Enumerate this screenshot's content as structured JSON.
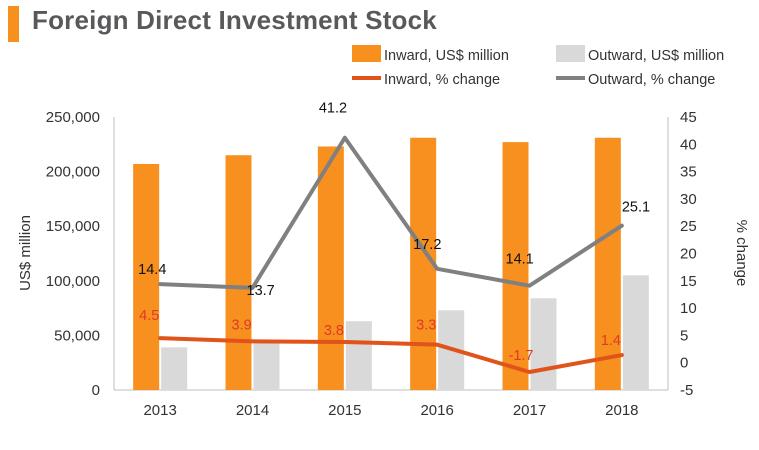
{
  "header": {
    "title": "Foreign Direct Investment Stock"
  },
  "colors": {
    "inward": "#f7901e",
    "outward": "#d9d9d9",
    "inward_line": "#e0531b",
    "outward_line": "#808080",
    "text": "#333333",
    "red_label": "#e03a27",
    "accent": "#f7901e"
  },
  "chart_data": {
    "type": "bar",
    "title": "Foreign Direct Investment Stock",
    "categories": [
      "2013",
      "2014",
      "2015",
      "2016",
      "2017",
      "2018"
    ],
    "series": [
      {
        "name": "Inward, US$ million",
        "kind": "bar",
        "axis": "left",
        "values": [
          207000,
          215000,
          223000,
          231000,
          227000,
          231000
        ]
      },
      {
        "name": "Outward, US$ million",
        "kind": "bar",
        "axis": "left",
        "values": [
          39000,
          44000,
          63000,
          73000,
          84000,
          105000
        ]
      },
      {
        "name": "Inward, % change",
        "kind": "line",
        "axis": "right",
        "values": [
          4.5,
          3.9,
          3.8,
          3.3,
          -1.7,
          1.4
        ],
        "labels": [
          "4.5",
          "3.9",
          "3.8",
          "3.3",
          "-1.7",
          "1.4"
        ]
      },
      {
        "name": "Outward, % change",
        "kind": "line",
        "axis": "right",
        "values": [
          14.4,
          13.7,
          41.2,
          17.2,
          14.1,
          25.1
        ],
        "labels": [
          "14.4",
          "13.7",
          "41.2",
          "17.2",
          "14.1",
          "25.1"
        ]
      }
    ],
    "ylabel": "US$ million",
    "ylabel_right": "% change",
    "ylim": [
      0,
      250000
    ],
    "ylim_right": [
      -5,
      45
    ],
    "yticks": [
      "0",
      "50,000",
      "100,000",
      "150,000",
      "200,000",
      "250,000"
    ],
    "yticks_right": [
      "-5",
      "0",
      "5",
      "10",
      "15",
      "20",
      "25",
      "30",
      "35",
      "40",
      "45"
    ],
    "legend": [
      "Inward, US$ million",
      "Outward, US$ million",
      "Inward, % change",
      "Outward, % change"
    ],
    "legend_position": "top-right",
    "grid": false
  }
}
